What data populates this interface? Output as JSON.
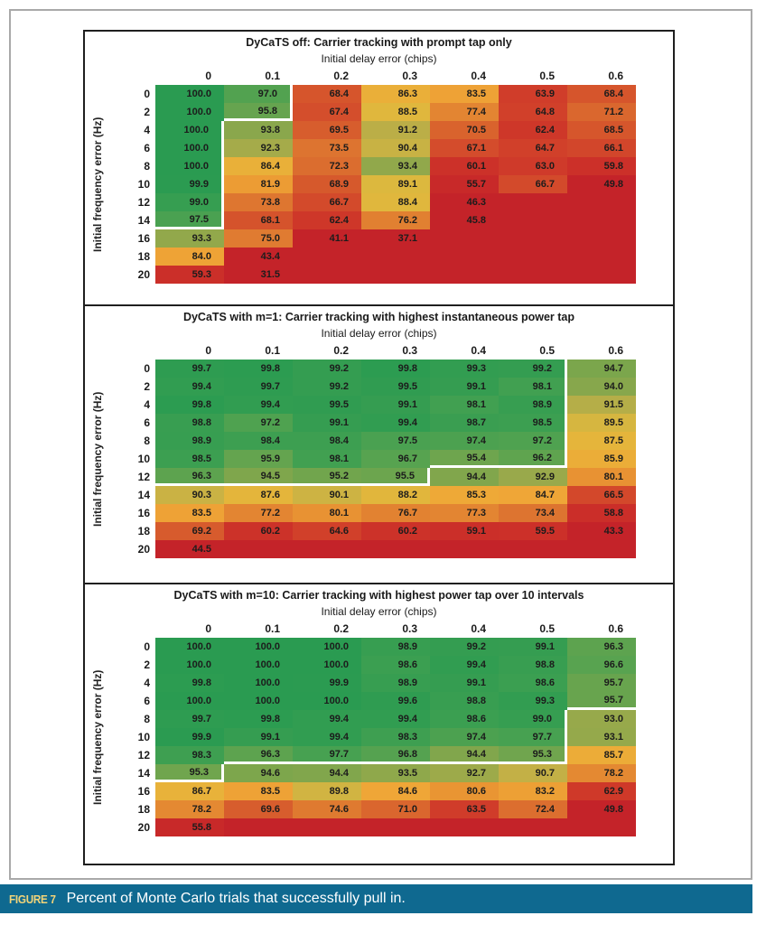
{
  "caption": {
    "label": "FIGURE 7",
    "text": "Percent of Monte Carlo trials that successfully pull in."
  },
  "colors": {
    "figure_border": "#1f1f1f",
    "page_frame": "#a9a9a9",
    "caption_bar": "#0f6990",
    "caption_label": "#f2d479",
    "caption_text": "#ffffff",
    "region_outline": "#ffffff",
    "cell_text": "#1c1c1c",
    "blank_cell": "#c42329"
  },
  "colormap": {
    "stops": [
      [
        52,
        "#c42329"
      ],
      [
        58,
        "#ca2c29"
      ],
      [
        62,
        "#ce3629"
      ],
      [
        66,
        "#d2452b"
      ],
      [
        70,
        "#d8602d"
      ],
      [
        74,
        "#de7730"
      ],
      [
        78,
        "#e48832"
      ],
      [
        82,
        "#ec9c34"
      ],
      [
        85,
        "#efa737"
      ],
      [
        87,
        "#e7b43a"
      ],
      [
        89,
        "#ddb83e"
      ],
      [
        91,
        "#bfaf47"
      ],
      [
        93,
        "#97a94b"
      ],
      [
        94.5,
        "#7fa64c"
      ],
      [
        96,
        "#62a44f"
      ],
      [
        98,
        "#42a051"
      ],
      [
        100,
        "#2a9b51"
      ]
    ]
  },
  "chart_data": [
    {
      "type": "heatmap",
      "title": "DyCaTS off: Carrier tracking with prompt tap only",
      "xlabel": "Initial delay error (chips)",
      "ylabel": "Initial frequency error (Hz)",
      "x_tick_labels": [
        "0",
        "0.1",
        "0.2",
        "0.3",
        "0.4",
        "0.5",
        "0.6"
      ],
      "y_tick_labels": [
        "0",
        "2",
        "4",
        "6",
        "8",
        "10",
        "12",
        "14",
        "16",
        "18",
        "20"
      ],
      "values": [
        [
          100.0,
          97.0,
          68.4,
          86.3,
          83.5,
          63.9,
          68.4
        ],
        [
          100.0,
          95.8,
          67.4,
          88.5,
          77.4,
          64.8,
          71.2
        ],
        [
          100.0,
          93.8,
          69.5,
          91.2,
          70.5,
          62.4,
          68.5
        ],
        [
          100.0,
          92.3,
          73.5,
          90.4,
          67.1,
          64.7,
          66.1
        ],
        [
          100.0,
          86.4,
          72.3,
          93.4,
          60.1,
          63.0,
          59.8
        ],
        [
          99.9,
          81.9,
          68.9,
          89.1,
          55.7,
          66.7,
          49.8
        ],
        [
          99.0,
          73.8,
          66.7,
          88.4,
          46.3,
          null,
          null
        ],
        [
          97.5,
          68.1,
          62.4,
          76.2,
          45.8,
          null,
          null
        ],
        [
          93.3,
          75.0,
          41.1,
          37.1,
          null,
          null,
          null
        ],
        [
          84.0,
          43.4,
          null,
          null,
          null,
          null,
          null
        ],
        [
          59.3,
          31.5,
          null,
          null,
          null,
          null,
          null
        ]
      ],
      "pull_in_region": [
        [
          1,
          1,
          0,
          0,
          0,
          0,
          0
        ],
        [
          1,
          1,
          0,
          0,
          0,
          0,
          0
        ],
        [
          1,
          0,
          0,
          0,
          0,
          0,
          0
        ],
        [
          1,
          0,
          0,
          0,
          0,
          0,
          0
        ],
        [
          1,
          0,
          0,
          0,
          0,
          0,
          0
        ],
        [
          1,
          0,
          0,
          0,
          0,
          0,
          0
        ],
        [
          1,
          0,
          0,
          0,
          0,
          0,
          0
        ],
        [
          1,
          0,
          0,
          0,
          0,
          0,
          0
        ],
        [
          0,
          0,
          0,
          0,
          0,
          0,
          0
        ],
        [
          0,
          0,
          0,
          0,
          0,
          0,
          0
        ],
        [
          0,
          0,
          0,
          0,
          0,
          0,
          0
        ]
      ]
    },
    {
      "type": "heatmap",
      "title": "DyCaTS with m=1: Carrier tracking with highest instantaneous power tap",
      "xlabel": "Initial delay error (chips)",
      "ylabel": "Initial frequency error (Hz)",
      "x_tick_labels": [
        "0",
        "0.1",
        "0.2",
        "0.3",
        "0.4",
        "0.5",
        "0.6"
      ],
      "y_tick_labels": [
        "0",
        "2",
        "4",
        "6",
        "8",
        "10",
        "12",
        "14",
        "16",
        "18",
        "20"
      ],
      "values": [
        [
          99.7,
          99.8,
          99.2,
          99.8,
          99.3,
          99.2,
          94.7
        ],
        [
          99.4,
          99.7,
          99.2,
          99.5,
          99.1,
          98.1,
          94.0
        ],
        [
          99.8,
          99.4,
          99.5,
          99.1,
          98.1,
          98.9,
          91.5
        ],
        [
          98.8,
          97.2,
          99.1,
          99.4,
          98.7,
          98.5,
          89.5
        ],
        [
          98.9,
          98.4,
          98.4,
          97.5,
          97.4,
          97.2,
          87.5
        ],
        [
          98.5,
          95.9,
          98.1,
          96.7,
          95.4,
          96.2,
          85.9
        ],
        [
          96.3,
          94.5,
          95.2,
          95.5,
          94.4,
          92.9,
          80.1
        ],
        [
          90.3,
          87.6,
          90.1,
          88.2,
          85.3,
          84.7,
          66.5
        ],
        [
          83.5,
          77.2,
          80.1,
          76.7,
          77.3,
          73.4,
          58.8
        ],
        [
          69.2,
          60.2,
          64.6,
          60.2,
          59.1,
          59.5,
          43.3
        ],
        [
          44.5,
          null,
          null,
          null,
          null,
          null,
          null
        ]
      ],
      "pull_in_region": [
        [
          1,
          1,
          1,
          1,
          1,
          1,
          0
        ],
        [
          1,
          1,
          1,
          1,
          1,
          1,
          0
        ],
        [
          1,
          1,
          1,
          1,
          1,
          1,
          0
        ],
        [
          1,
          1,
          1,
          1,
          1,
          1,
          0
        ],
        [
          1,
          1,
          1,
          1,
          1,
          1,
          0
        ],
        [
          1,
          1,
          1,
          1,
          1,
          1,
          0
        ],
        [
          1,
          1,
          1,
          1,
          0,
          0,
          0
        ],
        [
          0,
          0,
          0,
          0,
          0,
          0,
          0
        ],
        [
          0,
          0,
          0,
          0,
          0,
          0,
          0
        ],
        [
          0,
          0,
          0,
          0,
          0,
          0,
          0
        ],
        [
          0,
          0,
          0,
          0,
          0,
          0,
          0
        ]
      ]
    },
    {
      "type": "heatmap",
      "title": "DyCaTS with m=10: Carrier tracking with highest power tap over 10 intervals",
      "xlabel": "Initial delay error (chips)",
      "ylabel": "Initial frequency error (Hz)",
      "x_tick_labels": [
        "0",
        "0.1",
        "0.2",
        "0.3",
        "0.4",
        "0.5",
        "0.6"
      ],
      "y_tick_labels": [
        "0",
        "2",
        "4",
        "6",
        "8",
        "10",
        "12",
        "14",
        "16",
        "18",
        "20"
      ],
      "values": [
        [
          100.0,
          100.0,
          100.0,
          98.9,
          99.2,
          99.1,
          96.3
        ],
        [
          100.0,
          100.0,
          100.0,
          98.6,
          99.4,
          98.8,
          96.6
        ],
        [
          99.8,
          100.0,
          99.9,
          98.9,
          99.1,
          98.6,
          95.7
        ],
        [
          100.0,
          100.0,
          100.0,
          99.6,
          98.8,
          99.3,
          95.7
        ],
        [
          99.7,
          99.8,
          99.4,
          99.4,
          98.6,
          99.0,
          93.0
        ],
        [
          99.9,
          99.1,
          99.4,
          98.3,
          97.4,
          97.7,
          93.1
        ],
        [
          98.3,
          96.3,
          97.7,
          96.8,
          94.4,
          95.3,
          85.7
        ],
        [
          95.3,
          94.6,
          94.4,
          93.5,
          92.7,
          90.7,
          78.2
        ],
        [
          86.7,
          83.5,
          89.8,
          84.6,
          80.6,
          83.2,
          62.9
        ],
        [
          78.2,
          69.6,
          74.6,
          71.0,
          63.5,
          72.4,
          49.8
        ],
        [
          55.8,
          null,
          null,
          null,
          null,
          null,
          null
        ]
      ],
      "pull_in_region": [
        [
          1,
          1,
          1,
          1,
          1,
          1,
          1
        ],
        [
          1,
          1,
          1,
          1,
          1,
          1,
          1
        ],
        [
          1,
          1,
          1,
          1,
          1,
          1,
          1
        ],
        [
          1,
          1,
          1,
          1,
          1,
          1,
          1
        ],
        [
          1,
          1,
          1,
          1,
          1,
          1,
          0
        ],
        [
          1,
          1,
          1,
          1,
          1,
          1,
          0
        ],
        [
          1,
          1,
          1,
          1,
          1,
          1,
          0
        ],
        [
          1,
          0,
          0,
          0,
          0,
          0,
          0
        ],
        [
          0,
          0,
          0,
          0,
          0,
          0,
          0
        ],
        [
          0,
          0,
          0,
          0,
          0,
          0,
          0
        ],
        [
          0,
          0,
          0,
          0,
          0,
          0,
          0
        ]
      ]
    }
  ]
}
